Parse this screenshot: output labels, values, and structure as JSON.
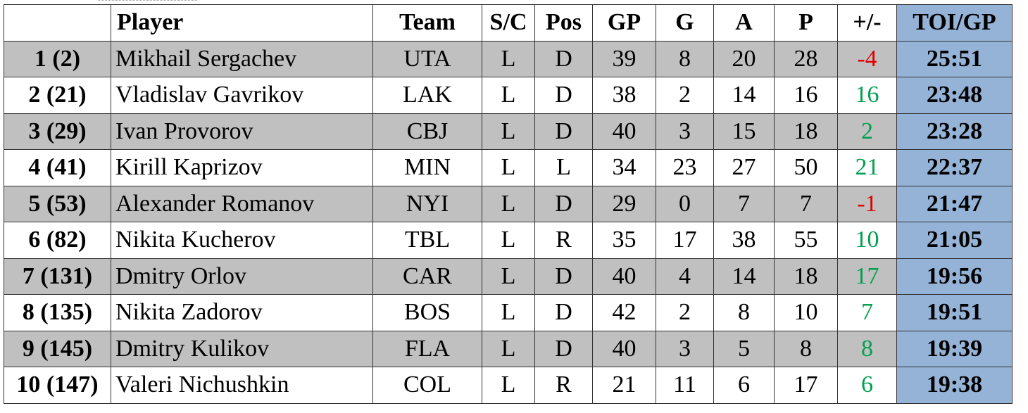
{
  "headers": {
    "rank": "",
    "player": "Player",
    "team": "Team",
    "sc": "S/C",
    "pos": "Pos",
    "gp": "GP",
    "g": "G",
    "a": "A",
    "p": "P",
    "pm": "+/-",
    "toi": "TOI/GP"
  },
  "colors": {
    "shaded_row": "#c0c0c0",
    "toi_column": "#95b3d7",
    "negative": "#e00000",
    "positive": "#00a050"
  },
  "rows": [
    {
      "rank": "1 (2)",
      "player": "Mikhail Sergachev",
      "team": "UTA",
      "sc": "L",
      "pos": "D",
      "gp": "39",
      "g": "8",
      "a": "20",
      "p": "28",
      "pm": "-4",
      "toi": "25:51"
    },
    {
      "rank": "2 (21)",
      "player": "Vladislav Gavrikov",
      "team": "LAK",
      "sc": "L",
      "pos": "D",
      "gp": "38",
      "g": "2",
      "a": "14",
      "p": "16",
      "pm": "16",
      "toi": "23:48"
    },
    {
      "rank": "3 (29)",
      "player": "Ivan Provorov",
      "team": "CBJ",
      "sc": "L",
      "pos": "D",
      "gp": "40",
      "g": "3",
      "a": "15",
      "p": "18",
      "pm": "2",
      "toi": "23:28"
    },
    {
      "rank": "4 (41)",
      "player": "Kirill Kaprizov",
      "team": "MIN",
      "sc": "L",
      "pos": "L",
      "gp": "34",
      "g": "23",
      "a": "27",
      "p": "50",
      "pm": "21",
      "toi": "22:37"
    },
    {
      "rank": "5 (53)",
      "player": "Alexander Romanov",
      "team": "NYI",
      "sc": "L",
      "pos": "D",
      "gp": "29",
      "g": "0",
      "a": "7",
      "p": "7",
      "pm": "-1",
      "toi": "21:47"
    },
    {
      "rank": "6 (82)",
      "player": "Nikita Kucherov",
      "team": "TBL",
      "sc": "L",
      "pos": "R",
      "gp": "35",
      "g": "17",
      "a": "38",
      "p": "55",
      "pm": "10",
      "toi": "21:05"
    },
    {
      "rank": "7 (131)",
      "player": "Dmitry Orlov",
      "team": "CAR",
      "sc": "L",
      "pos": "D",
      "gp": "40",
      "g": "4",
      "a": "14",
      "p": "18",
      "pm": "17",
      "toi": "19:56"
    },
    {
      "rank": "8 (135)",
      "player": "Nikita Zadorov",
      "team": "BOS",
      "sc": "L",
      "pos": "D",
      "gp": "42",
      "g": "2",
      "a": "8",
      "p": "10",
      "pm": "7",
      "toi": "19:51"
    },
    {
      "rank": "9 (145)",
      "player": "Dmitry Kulikov",
      "team": "FLA",
      "sc": "L",
      "pos": "D",
      "gp": "40",
      "g": "3",
      "a": "5",
      "p": "8",
      "pm": "8",
      "toi": "19:39"
    },
    {
      "rank": "10 (147)",
      "player": "Valeri Nichushkin",
      "team": "COL",
      "sc": "L",
      "pos": "R",
      "gp": "21",
      "g": "11",
      "a": "6",
      "p": "17",
      "pm": "6",
      "toi": "19:38"
    }
  ]
}
